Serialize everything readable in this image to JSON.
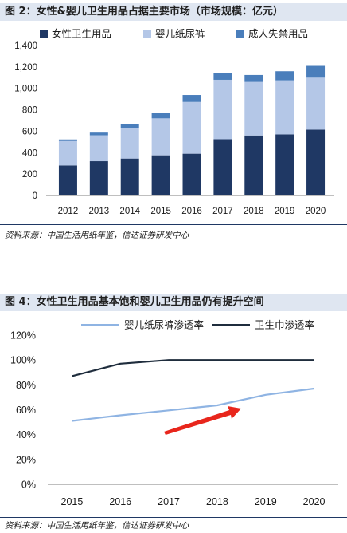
{
  "figures": [
    {
      "title": "图 2：女性&婴儿卫生用品占据主要市场（市场规模：亿元）",
      "source": "资料来源：中国生活用纸年鉴，信达证券研发中心"
    },
    {
      "title": "图 4：女性卫生用品基本饱和婴儿卫生用品仍有提升空间",
      "source": "资料来源：中国生活用纸年鉴，信达证券研发中心"
    }
  ],
  "chart_data": [
    {
      "type": "bar",
      "stacked": true,
      "categories": [
        "2012",
        "2013",
        "2014",
        "2015",
        "2016",
        "2017",
        "2018",
        "2019",
        "2020"
      ],
      "series": [
        {
          "name": "女性卫生用品",
          "color": "#1f3864",
          "values": [
            280,
            320,
            345,
            375,
            390,
            525,
            560,
            570,
            615
          ]
        },
        {
          "name": "婴儿纸尿裤",
          "color": "#b4c7e7",
          "values": [
            228,
            242,
            283,
            345,
            483,
            555,
            500,
            505,
            485
          ]
        },
        {
          "name": "成人失禁用品",
          "color": "#4a7ebb",
          "values": [
            15,
            25,
            40,
            50,
            65,
            60,
            65,
            85,
            110
          ]
        }
      ],
      "yticks": [
        "0",
        "200",
        "400",
        "600",
        "800",
        "1,000",
        "1,200",
        "1,400"
      ],
      "ylim": [
        0,
        1400
      ],
      "legend": "top"
    },
    {
      "type": "line",
      "x": [
        "2015",
        "2016",
        "2017",
        "2018",
        "2019",
        "2020"
      ],
      "series": [
        {
          "name": "婴儿纸尿裤渗透率",
          "color": "#8fb4e3",
          "values": [
            51,
            55.5,
            59.5,
            63.5,
            72,
            77
          ]
        },
        {
          "name": "卫生巾渗透率",
          "color": "#1f2d3d",
          "values": [
            87,
            97,
            100,
            100,
            100,
            100
          ]
        }
      ],
      "yticks": [
        "0%",
        "20%",
        "40%",
        "60%",
        "80%",
        "100%",
        "120%"
      ],
      "ylim": [
        0,
        120
      ],
      "legend": "top",
      "annotation": "red-trend-arrow"
    }
  ]
}
